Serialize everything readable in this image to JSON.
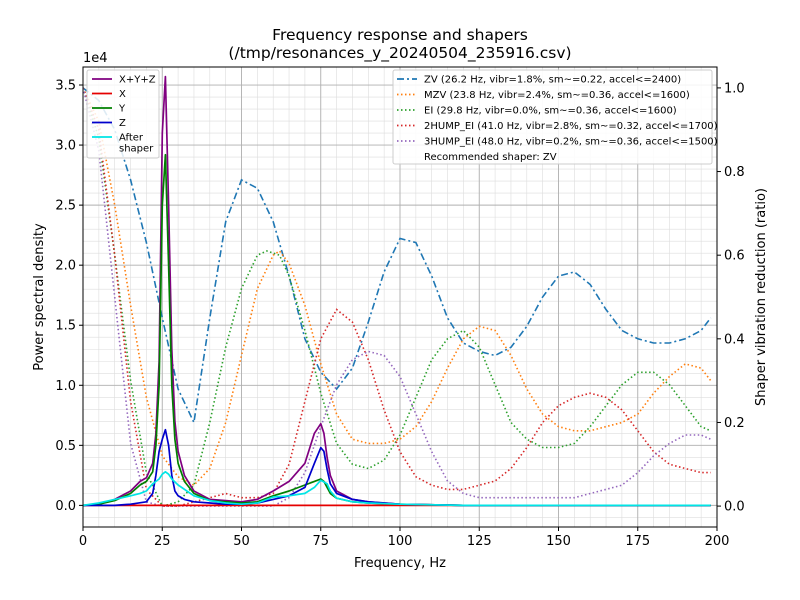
{
  "chart_data": {
    "type": "line",
    "title": "Frequency response and shapers",
    "subtitle": "(/tmp/resonances_y_20240504_235916.csv)",
    "xlabel": "Frequency, Hz",
    "ylabel": "Power spectral density",
    "ylabel_right": "Shaper vibration reduction (ratio)",
    "xlim": [
      0,
      200
    ],
    "ylim": [
      -0.18,
      3.65
    ],
    "ylim_right": [
      -0.05,
      1.05
    ],
    "y_scale_note": "1e4",
    "grid": true,
    "x_ticks": [
      "0",
      "25",
      "50",
      "75",
      "100",
      "125",
      "150",
      "175",
      "200"
    ],
    "y_ticks": [
      "0.0",
      "0.5",
      "1.0",
      "1.5",
      "2.0",
      "2.5",
      "3.0",
      "3.5"
    ],
    "y_ticks_right": [
      "0.0",
      "0.2",
      "0.4",
      "0.6",
      "0.8",
      "1.0"
    ],
    "legend_left_position": "top-left",
    "legend_right_position": "top-right",
    "psd_series": [
      {
        "name": "X+Y+Z",
        "color": "#800080",
        "x": [
          0,
          5,
          10,
          15,
          18,
          20,
          22,
          23,
          24,
          25,
          26,
          27,
          28,
          29,
          30,
          32,
          35,
          40,
          45,
          50,
          55,
          60,
          65,
          70,
          73,
          75,
          76,
          77,
          78,
          80,
          85,
          90,
          100,
          120,
          150,
          175,
          198
        ],
        "y": [
          0,
          0.01,
          0.05,
          0.12,
          0.2,
          0.23,
          0.35,
          0.6,
          1.2,
          3.1,
          3.57,
          2.5,
          1.3,
          0.7,
          0.45,
          0.25,
          0.12,
          0.05,
          0.04,
          0.03,
          0.05,
          0.12,
          0.2,
          0.35,
          0.6,
          0.68,
          0.6,
          0.4,
          0.25,
          0.12,
          0.05,
          0.03,
          0.01,
          0,
          0,
          0,
          0
        ]
      },
      {
        "name": "X",
        "color": "#e50000",
        "x": [
          0,
          50,
          100,
          150,
          198
        ],
        "y": [
          0,
          0,
          0,
          0,
          0
        ]
      },
      {
        "name": "Y",
        "color": "#008000",
        "x": [
          0,
          5,
          10,
          15,
          18,
          20,
          22,
          23,
          24,
          25,
          26,
          27,
          28,
          29,
          30,
          32,
          35,
          40,
          45,
          50,
          55,
          60,
          65,
          70,
          73,
          75,
          76,
          77,
          78,
          80,
          85,
          90,
          100,
          120,
          150,
          175,
          198
        ],
        "y": [
          0,
          0.01,
          0.04,
          0.1,
          0.17,
          0.2,
          0.28,
          0.5,
          1.0,
          2.5,
          2.92,
          2.0,
          1.0,
          0.55,
          0.35,
          0.2,
          0.1,
          0.04,
          0.03,
          0.02,
          0.03,
          0.08,
          0.12,
          0.17,
          0.2,
          0.22,
          0.2,
          0.15,
          0.1,
          0.06,
          0.03,
          0.02,
          0.01,
          0,
          0,
          0,
          0
        ]
      },
      {
        "name": "Z",
        "color": "#0000cc",
        "x": [
          0,
          5,
          10,
          15,
          20,
          22,
          23,
          24,
          25,
          26,
          27,
          28,
          29,
          30,
          32,
          35,
          40,
          45,
          50,
          55,
          60,
          65,
          70,
          73,
          75,
          76,
          77,
          78,
          80,
          85,
          90,
          100,
          120,
          150,
          175,
          198
        ],
        "y": [
          0,
          0,
          0,
          0.01,
          0.03,
          0.1,
          0.25,
          0.45,
          0.55,
          0.63,
          0.5,
          0.25,
          0.12,
          0.08,
          0.05,
          0.03,
          0.02,
          0.01,
          0.01,
          0.02,
          0.05,
          0.08,
          0.15,
          0.35,
          0.48,
          0.45,
          0.3,
          0.18,
          0.1,
          0.05,
          0.03,
          0.01,
          0,
          0,
          0,
          0
        ]
      },
      {
        "name": "After\nshaper",
        "color": "#00e5e5",
        "x": [
          0,
          5,
          10,
          15,
          18,
          20,
          22,
          24,
          25,
          26,
          27,
          28,
          30,
          35,
          40,
          45,
          50,
          55,
          60,
          65,
          70,
          73,
          75,
          77,
          78,
          80,
          85,
          90,
          100,
          120,
          150,
          175,
          198
        ],
        "y": [
          0,
          0.02,
          0.05,
          0.08,
          0.1,
          0.12,
          0.18,
          0.22,
          0.26,
          0.28,
          0.26,
          0.22,
          0.17,
          0.08,
          0.04,
          0.02,
          0.01,
          0.02,
          0.07,
          0.08,
          0.1,
          0.15,
          0.21,
          0.18,
          0.12,
          0.06,
          0.03,
          0.02,
          0.01,
          0,
          0,
          0,
          0
        ]
      }
    ],
    "shaper_series": [
      {
        "name": "ZV (26.2 Hz, vibr=1.8%, sm~=0.22, accel<=2400)",
        "color": "#1f77b4",
        "style": "dashdot",
        "x": [
          0,
          5,
          10,
          15,
          20,
          25,
          30,
          35,
          40,
          45,
          50,
          55,
          60,
          65,
          70,
          75,
          80,
          85,
          90,
          95,
          100,
          105,
          110,
          115,
          120,
          125,
          130,
          135,
          140,
          145,
          150,
          155,
          160,
          165,
          170,
          175,
          180,
          185,
          190,
          195,
          198
        ],
        "y": [
          1.0,
          0.97,
          0.9,
          0.78,
          0.63,
          0.45,
          0.28,
          0.2,
          0.45,
          0.68,
          0.78,
          0.76,
          0.68,
          0.55,
          0.4,
          0.32,
          0.28,
          0.33,
          0.44,
          0.56,
          0.64,
          0.63,
          0.55,
          0.45,
          0.39,
          0.37,
          0.36,
          0.38,
          0.43,
          0.5,
          0.55,
          0.56,
          0.53,
          0.47,
          0.42,
          0.4,
          0.39,
          0.39,
          0.4,
          0.42,
          0.45
        ]
      },
      {
        "name": "MZV (23.8 Hz, vibr=2.4%, sm~=0.36, accel<=1600)",
        "color": "#ff7f0e",
        "style": "dotted",
        "x": [
          0,
          5,
          10,
          15,
          20,
          25,
          30,
          35,
          40,
          45,
          50,
          55,
          60,
          62,
          65,
          70,
          75,
          80,
          85,
          90,
          95,
          100,
          105,
          110,
          115,
          120,
          125,
          130,
          135,
          140,
          145,
          150,
          155,
          160,
          165,
          170,
          175,
          180,
          185,
          190,
          195,
          198
        ],
        "y": [
          1.0,
          0.92,
          0.72,
          0.48,
          0.26,
          0.12,
          0.07,
          0.05,
          0.09,
          0.2,
          0.36,
          0.52,
          0.6,
          0.61,
          0.58,
          0.48,
          0.34,
          0.22,
          0.16,
          0.15,
          0.15,
          0.16,
          0.19,
          0.25,
          0.33,
          0.4,
          0.43,
          0.42,
          0.36,
          0.28,
          0.22,
          0.19,
          0.18,
          0.18,
          0.19,
          0.2,
          0.22,
          0.27,
          0.31,
          0.34,
          0.33,
          0.3
        ]
      },
      {
        "name": "EI (29.8 Hz, vibr=0.0%, sm~=0.36, accel<=1600)",
        "color": "#2ca02c",
        "style": "dotted",
        "x": [
          0,
          5,
          10,
          15,
          20,
          25,
          30,
          35,
          40,
          45,
          50,
          55,
          58,
          62,
          65,
          70,
          75,
          80,
          85,
          90,
          95,
          100,
          105,
          110,
          115,
          120,
          125,
          130,
          135,
          140,
          145,
          150,
          155,
          160,
          165,
          170,
          175,
          180,
          185,
          190,
          195,
          198
        ],
        "y": [
          1.0,
          0.88,
          0.6,
          0.3,
          0.08,
          0.0,
          0.01,
          0.05,
          0.2,
          0.38,
          0.52,
          0.6,
          0.61,
          0.6,
          0.55,
          0.42,
          0.27,
          0.15,
          0.1,
          0.09,
          0.11,
          0.17,
          0.26,
          0.35,
          0.4,
          0.42,
          0.38,
          0.29,
          0.2,
          0.16,
          0.14,
          0.14,
          0.15,
          0.19,
          0.24,
          0.29,
          0.32,
          0.32,
          0.29,
          0.24,
          0.19,
          0.18
        ]
      },
      {
        "name": "2HUMP_EI (41.0 Hz, vibr=2.8%, sm~=0.32, accel<=1700)",
        "color": "#d62728",
        "style": "dotted",
        "x": [
          0,
          5,
          10,
          15,
          20,
          25,
          30,
          35,
          40,
          45,
          50,
          55,
          60,
          65,
          70,
          75,
          80,
          85,
          90,
          95,
          100,
          105,
          110,
          115,
          120,
          125,
          130,
          135,
          140,
          145,
          150,
          155,
          160,
          165,
          170,
          175,
          180,
          185,
          190,
          195,
          198
        ],
        "y": [
          1.0,
          0.9,
          0.6,
          0.25,
          0.04,
          0.0,
          0.0,
          0.01,
          0.02,
          0.03,
          0.02,
          0.02,
          0.03,
          0.1,
          0.25,
          0.4,
          0.47,
          0.44,
          0.35,
          0.23,
          0.13,
          0.07,
          0.05,
          0.04,
          0.04,
          0.05,
          0.06,
          0.09,
          0.14,
          0.2,
          0.24,
          0.26,
          0.27,
          0.26,
          0.23,
          0.18,
          0.13,
          0.1,
          0.09,
          0.08,
          0.08
        ]
      },
      {
        "name": "3HUMP_EI (48.0 Hz, vibr=0.2%, sm~=0.36, accel<=1500)",
        "color": "#9467bd",
        "style": "dotted",
        "x": [
          0,
          5,
          10,
          15,
          20,
          25,
          30,
          35,
          40,
          45,
          50,
          55,
          60,
          65,
          70,
          75,
          80,
          85,
          90,
          95,
          100,
          105,
          110,
          115,
          120,
          125,
          130,
          135,
          140,
          145,
          150,
          155,
          160,
          165,
          170,
          175,
          180,
          185,
          190,
          195,
          198
        ],
        "y": [
          1.0,
          0.85,
          0.5,
          0.15,
          0.01,
          0.0,
          0.0,
          0.0,
          0.0,
          0.0,
          0.0,
          0.0,
          0.0,
          0.02,
          0.08,
          0.19,
          0.29,
          0.35,
          0.37,
          0.36,
          0.31,
          0.22,
          0.13,
          0.06,
          0.03,
          0.02,
          0.02,
          0.02,
          0.02,
          0.02,
          0.02,
          0.02,
          0.03,
          0.04,
          0.05,
          0.08,
          0.12,
          0.15,
          0.17,
          0.17,
          0.16
        ]
      }
    ],
    "legend_left": [
      "X+Y+Z",
      "X",
      "Y",
      "Z",
      "After\nshaper"
    ],
    "legend_right": [
      "ZV (26.2 Hz, vibr=1.8%, sm~=0.22, accel<=2400)",
      "MZV (23.8 Hz, vibr=2.4%, sm~=0.36, accel<=1600)",
      "EI (29.8 Hz, vibr=0.0%, sm~=0.36, accel<=1600)",
      "2HUMP_EI (41.0 Hz, vibr=2.8%, sm~=0.32, accel<=1700)",
      "3HUMP_EI (48.0 Hz, vibr=0.2%, sm~=0.36, accel<=1500)"
    ],
    "recommendation": "Recommended shaper: ZV"
  }
}
